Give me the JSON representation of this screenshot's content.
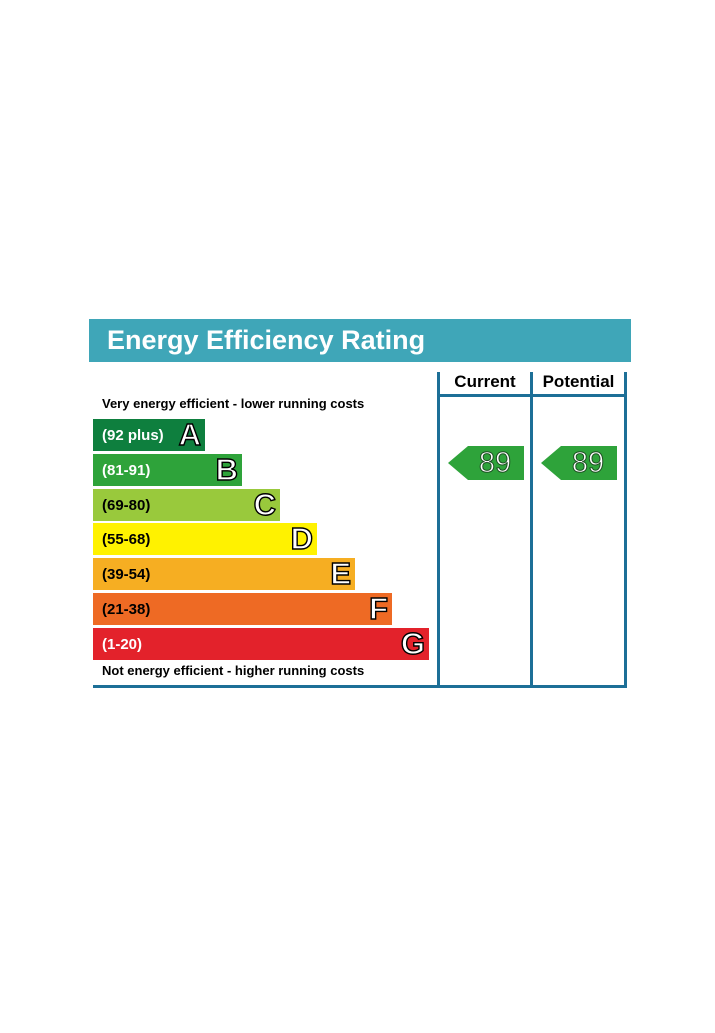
{
  "chart_data": {
    "type": "bar",
    "title": "Energy Efficiency Rating",
    "top_note": "Very energy efficient - lower running costs",
    "bottom_note": "Not energy efficient - higher running costs",
    "columns": [
      "Current",
      "Potential"
    ],
    "bands": [
      {
        "range": "(92 plus)",
        "letter": "A",
        "color": "#0e7f3e",
        "text_color": "#ffffff"
      },
      {
        "range": "(81-91)",
        "letter": "B",
        "color": "#2ea33a",
        "text_color": "#ffffff"
      },
      {
        "range": "(69-80)",
        "letter": "C",
        "color": "#99c93c",
        "text_color": "#000000"
      },
      {
        "range": "(55-68)",
        "letter": "D",
        "color": "#fff200",
        "text_color": "#000000"
      },
      {
        "range": "(39-54)",
        "letter": "E",
        "color": "#f6ae22",
        "text_color": "#000000"
      },
      {
        "range": "(21-38)",
        "letter": "F",
        "color": "#ee6a24",
        "text_color": "#000000"
      },
      {
        "range": "(1-20)",
        "letter": "G",
        "color": "#e3222b",
        "text_color": "#ffffff"
      }
    ],
    "current": {
      "value": 89,
      "band": "B",
      "color": "#2ea33a"
    },
    "potential": {
      "value": 89,
      "band": "B",
      "color": "#2ea33a"
    }
  }
}
